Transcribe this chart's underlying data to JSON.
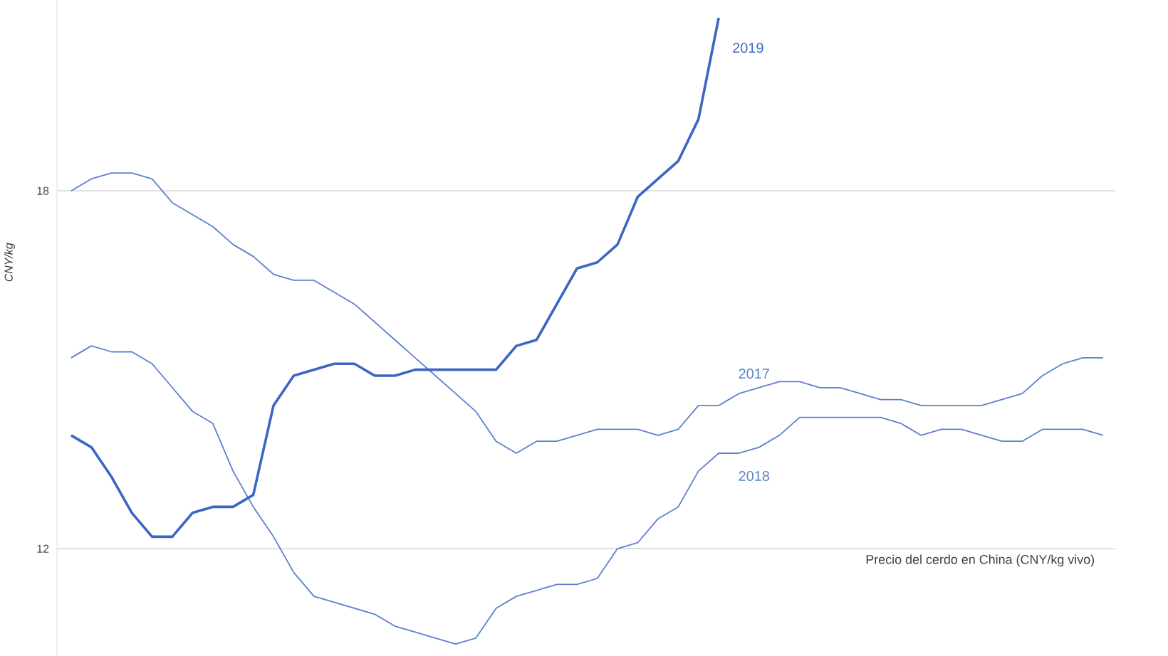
{
  "chart_data": {
    "type": "line",
    "title": "Precio del cerdo en China (CNY/kg vivo)",
    "ylabel": "CNY/kg",
    "categories": [
      null,
      null,
      null,
      null,
      null,
      null,
      null,
      null,
      null,
      null,
      null,
      null,
      null,
      null,
      null,
      null,
      null,
      null,
      null,
      null,
      null,
      null,
      null,
      null,
      null,
      null,
      null,
      null,
      null,
      null,
      null,
      null,
      null,
      null,
      null,
      null,
      null,
      null,
      null,
      null,
      null,
      null,
      null,
      null,
      null,
      null,
      null,
      null,
      null,
      null,
      null,
      null
    ],
    "series": [
      {
        "name": "2017",
        "color": "#5b80cc",
        "values": [
          18.0,
          18.2,
          18.3,
          18.3,
          18.2,
          17.8,
          17.6,
          17.4,
          17.1,
          16.9,
          16.6,
          16.5,
          16.5,
          16.3,
          16.1,
          15.8,
          15.5,
          15.2,
          14.9,
          14.6,
          14.3,
          13.8,
          13.6,
          13.8,
          13.8,
          13.9,
          14.0,
          14.0,
          14.0,
          13.9,
          14.0,
          14.4,
          14.4,
          14.6,
          14.7,
          14.8,
          14.8,
          14.7,
          14.7,
          14.6,
          14.5,
          14.5,
          14.4,
          14.4,
          14.4,
          14.4,
          14.5,
          14.6,
          14.9,
          15.1,
          15.2,
          15.2
        ]
      },
      {
        "name": "2018",
        "color": "#5b80cc",
        "values": [
          15.2,
          15.4,
          15.3,
          15.3,
          15.1,
          14.7,
          14.3,
          14.1,
          13.3,
          12.7,
          12.2,
          11.6,
          11.2,
          11.1,
          11.0,
          10.9,
          10.7,
          10.6,
          10.5,
          10.4,
          10.5,
          11.0,
          11.2,
          11.3,
          11.4,
          11.4,
          11.5,
          12.0,
          12.1,
          12.5,
          12.7,
          13.3,
          13.6,
          13.6,
          13.7,
          13.9,
          14.2,
          14.2,
          14.2,
          14.2,
          14.2,
          14.1,
          13.9,
          14.0,
          14.0,
          13.9,
          13.8,
          13.8,
          14.0,
          14.0,
          14.0,
          13.9
        ]
      },
      {
        "name": "2019",
        "color": "#3a66c4",
        "values": [
          13.9,
          13.7,
          13.2,
          12.6,
          12.2,
          12.2,
          12.6,
          12.7,
          12.7,
          12.9,
          14.4,
          14.9,
          15.0,
          15.1,
          15.1,
          14.9,
          14.9,
          15.0,
          15.0,
          15.0,
          15.0,
          15.0,
          15.4,
          15.5,
          16.1,
          16.7,
          16.8,
          17.1,
          17.9,
          18.2,
          18.5,
          19.2,
          20.9,
          null,
          null,
          null,
          null,
          null,
          null,
          null,
          null,
          null,
          null,
          null,
          null,
          null,
          null,
          null,
          null,
          null,
          null,
          null
        ]
      }
    ],
    "ylim": [
      10.2,
      21.2
    ],
    "yticks": [
      12,
      18
    ],
    "grid": "y",
    "legend": false,
    "marker": "none",
    "line_style": "solid"
  }
}
